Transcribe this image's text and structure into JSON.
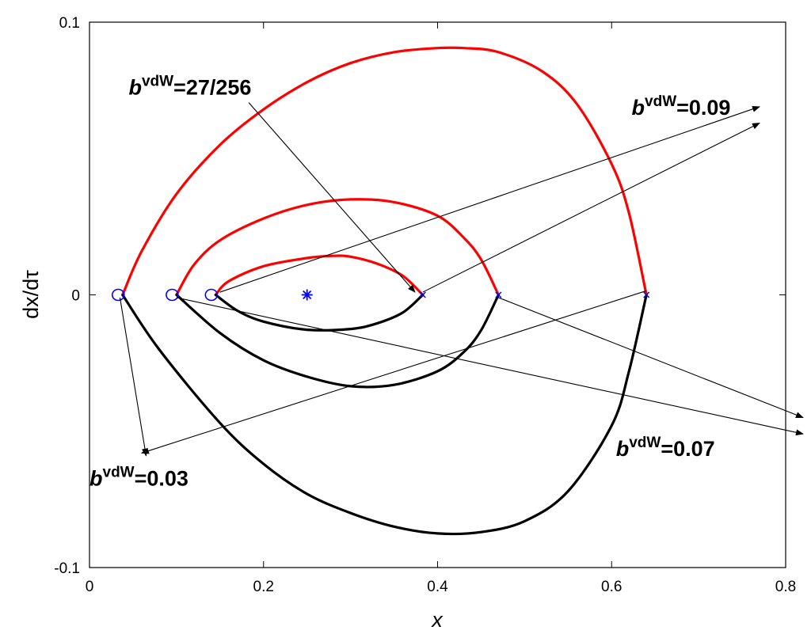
{
  "chart_data": {
    "type": "line",
    "xlabel": "x",
    "ylabel": "dx/dτ",
    "xlim": [
      0,
      0.8
    ],
    "ylim": [
      -0.1,
      0.1
    ],
    "x_ticks": [
      "0",
      "0.2",
      "0.4",
      "0.6",
      "0.8"
    ],
    "y_ticks": [
      "-0.1",
      "0",
      "0.1"
    ],
    "grid": false,
    "legend": "none",
    "colors": {
      "upper": "#ff0000",
      "lower": "#000000",
      "markers": "#0000ff"
    },
    "series": [
      {
        "label": "b=0.03 upper branch",
        "color": "#ff0000",
        "points": [
          [
            0.038,
            0
          ],
          [
            0.06,
            0.016
          ],
          [
            0.1,
            0.037
          ],
          [
            0.15,
            0.055
          ],
          [
            0.2,
            0.068
          ],
          [
            0.25,
            0.078
          ],
          [
            0.3,
            0.085
          ],
          [
            0.35,
            0.089
          ],
          [
            0.4,
            0.0905
          ],
          [
            0.43,
            0.0905
          ],
          [
            0.47,
            0.089
          ],
          [
            0.52,
            0.082
          ],
          [
            0.56,
            0.07
          ],
          [
            0.6,
            0.048
          ],
          [
            0.62,
            0.03
          ],
          [
            0.64,
            0
          ]
        ]
      },
      {
        "label": "b=0.03 lower branch",
        "color": "#000000",
        "points": [
          [
            0.038,
            0
          ],
          [
            0.08,
            -0.02
          ],
          [
            0.15,
            -0.047
          ],
          [
            0.2,
            -0.062
          ],
          [
            0.25,
            -0.073
          ],
          [
            0.3,
            -0.08
          ],
          [
            0.35,
            -0.085
          ],
          [
            0.4,
            -0.0875
          ],
          [
            0.45,
            -0.087
          ],
          [
            0.5,
            -0.083
          ],
          [
            0.55,
            -0.072
          ],
          [
            0.6,
            -0.048
          ],
          [
            0.62,
            -0.028
          ],
          [
            0.64,
            0
          ]
        ]
      },
      {
        "label": "b=0.07 upper branch",
        "color": "#ff0000",
        "points": [
          [
            0.1,
            0
          ],
          [
            0.12,
            0.011
          ],
          [
            0.15,
            0.02
          ],
          [
            0.2,
            0.028
          ],
          [
            0.25,
            0.033
          ],
          [
            0.3,
            0.035
          ],
          [
            0.35,
            0.034
          ],
          [
            0.4,
            0.029
          ],
          [
            0.43,
            0.021
          ],
          [
            0.45,
            0.013
          ],
          [
            0.47,
            0
          ]
        ]
      },
      {
        "label": "b=0.07 lower branch",
        "color": "#000000",
        "points": [
          [
            0.1,
            0
          ],
          [
            0.15,
            -0.014
          ],
          [
            0.2,
            -0.024
          ],
          [
            0.25,
            -0.03
          ],
          [
            0.3,
            -0.0335
          ],
          [
            0.35,
            -0.033
          ],
          [
            0.4,
            -0.028
          ],
          [
            0.43,
            -0.021
          ],
          [
            0.45,
            -0.013
          ],
          [
            0.47,
            0
          ]
        ]
      },
      {
        "label": "b=0.09 upper branch",
        "color": "#ff0000",
        "points": [
          [
            0.145,
            0
          ],
          [
            0.16,
            0.005
          ],
          [
            0.2,
            0.0105
          ],
          [
            0.25,
            0.0135
          ],
          [
            0.28,
            0.0143
          ],
          [
            0.3,
            0.014
          ],
          [
            0.33,
            0.0115
          ],
          [
            0.36,
            0.007
          ],
          [
            0.383,
            0
          ]
        ]
      },
      {
        "label": "b=0.09 lower branch",
        "color": "#000000",
        "points": [
          [
            0.145,
            0
          ],
          [
            0.17,
            -0.0058
          ],
          [
            0.2,
            -0.0098
          ],
          [
            0.25,
            -0.0128
          ],
          [
            0.3,
            -0.0125
          ],
          [
            0.33,
            -0.0105
          ],
          [
            0.36,
            -0.0065
          ],
          [
            0.383,
            0
          ]
        ]
      }
    ],
    "circle_markers": [
      [
        0.033,
        0
      ],
      [
        0.095,
        0
      ],
      [
        0.14,
        0
      ]
    ],
    "x_markers": [
      [
        0.383,
        0
      ],
      [
        0.47,
        0
      ],
      [
        0.64,
        0
      ]
    ],
    "star_marker": [
      0.25,
      0
    ],
    "annotations": [
      {
        "b": "b",
        "sup": "vdW",
        "text": "=27/256",
        "anchor": [
          0.045,
          0.0735
        ],
        "targets": [
          [
            0.25,
            0.001
          ]
        ]
      },
      {
        "b": "b",
        "sup": "vdW",
        "text": "=0.09",
        "anchor": [
          0.623,
          0.066
        ],
        "targets": [
          [
            0.15,
            0.001
          ],
          [
            0.383,
            0.001
          ]
        ]
      },
      {
        "b": "b",
        "sup": "vdW",
        "text": "=0.07",
        "anchor": [
          0.605,
          -0.059
        ],
        "targets": [
          [
            0.1,
            -0.001
          ],
          [
            0.47,
            -0.001
          ]
        ]
      },
      {
        "b": "b",
        "sup": "vdW",
        "text": "=0.03",
        "anchor": [
          0.0,
          -0.07
        ],
        "targets": [
          [
            0.64,
            0
          ],
          [
            0.035,
            -0.001
          ]
        ]
      }
    ],
    "annotation_arrow_ends": [
      [
        [
          0.183,
          0.0705
        ],
        [
          0.374,
          0.001
        ]
      ],
      [
        [
          0.15,
          0.001
        ],
        [
          0.77,
          0.069
        ]
      ],
      [
        [
          0.383,
          0.001
        ],
        [
          0.77,
          0.063
        ]
      ],
      [
        [
          0.1,
          -0.001
        ],
        [
          0.82,
          -0.051
        ]
      ],
      [
        [
          0.47,
          -0.001
        ],
        [
          0.82,
          -0.045
        ]
      ],
      [
        [
          0.64,
          0.0015
        ],
        [
          0.06,
          -0.058
        ]
      ],
      [
        [
          0.035,
          -0.001
        ],
        [
          0.065,
          -0.059
        ]
      ]
    ]
  }
}
